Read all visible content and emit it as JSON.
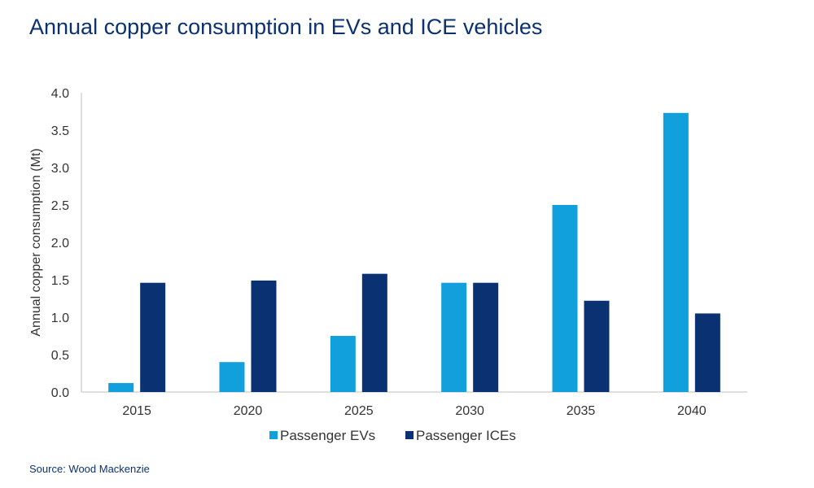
{
  "chart_data": {
    "type": "bar",
    "title": "Annual copper consumption in EVs and ICE vehicles",
    "ylabel": "Annual copper consumption (Mt)",
    "xlabel": "",
    "categories": [
      "2015",
      "2020",
      "2025",
      "2030",
      "2035",
      "2040"
    ],
    "series": [
      {
        "name": "Passenger EVs",
        "color": "#12a0dc",
        "values": [
          0.12,
          0.4,
          0.75,
          1.46,
          2.5,
          3.73
        ]
      },
      {
        "name": "Passenger ICEs",
        "color": "#0a3272",
        "values": [
          1.46,
          1.49,
          1.58,
          1.46,
          1.22,
          1.05
        ]
      }
    ],
    "ylim": [
      0,
      4.0
    ],
    "yticks": [
      "0.0",
      "0.5",
      "1.0",
      "1.5",
      "2.0",
      "2.5",
      "3.0",
      "3.5",
      "4.0"
    ],
    "grid": false,
    "legend": "bottom"
  },
  "source": "Source: Wood Mackenzie"
}
